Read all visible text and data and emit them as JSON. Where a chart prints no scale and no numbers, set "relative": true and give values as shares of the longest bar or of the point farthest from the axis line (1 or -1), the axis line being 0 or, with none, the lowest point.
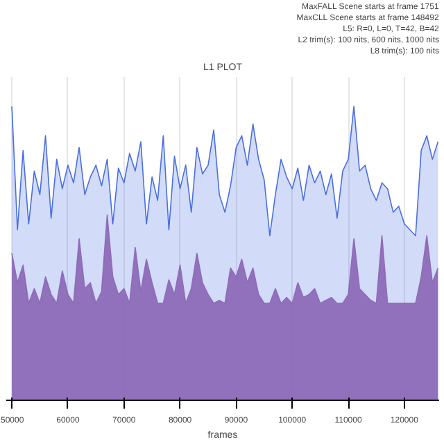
{
  "chart_data": {
    "type": "area",
    "title": "L1 PLOT",
    "xlabel": "frames",
    "relative": true,
    "grid": "x",
    "annotations": [
      "MaxFALL Scene starts at frame 1751",
      "MaxCLL Scene starts at frame 148492",
      "L5: R=0, L=0, T=42, B=42",
      "L2 trim(s): 100 nits, 600 nits, 1000 nits",
      "L8 trim(s): 100 nits"
    ],
    "xlim": [
      49000,
      126200
    ],
    "xticks": [
      50000,
      60000,
      70000,
      80000,
      90000,
      100000,
      110000,
      120000
    ],
    "x": [
      50000,
      51000,
      52000,
      53000,
      54000,
      55000,
      56000,
      57000,
      58000,
      59000,
      60000,
      61000,
      62000,
      63000,
      64000,
      65000,
      66000,
      67000,
      68000,
      69000,
      70000,
      71000,
      72000,
      73000,
      74000,
      75000,
      76000,
      77000,
      78000,
      79000,
      80000,
      81000,
      82000,
      83000,
      84000,
      85000,
      86000,
      87000,
      88000,
      89000,
      90000,
      91000,
      92000,
      93000,
      94000,
      95000,
      96000,
      97000,
      98000,
      99000,
      100000,
      101000,
      102000,
      103000,
      104000,
      105000,
      106000,
      107000,
      108000,
      109000,
      110000,
      111000,
      112000,
      113000,
      114000,
      115000,
      116000,
      117000,
      118000,
      119000,
      120000,
      121000,
      122000,
      123000,
      124000,
      125000,
      126000
    ],
    "series": [
      {
        "color": "#4a6fe0",
        "values": [
          1.0,
          0.58,
          0.85,
          0.6,
          0.78,
          0.7,
          0.9,
          0.62,
          0.82,
          0.72,
          0.8,
          0.74,
          0.86,
          0.7,
          0.76,
          0.8,
          0.73,
          0.82,
          0.6,
          0.79,
          0.74,
          0.84,
          0.78,
          0.88,
          0.6,
          0.76,
          0.68,
          0.9,
          0.58,
          0.83,
          0.72,
          0.8,
          0.64,
          0.86,
          0.77,
          0.8,
          0.92,
          0.7,
          0.64,
          0.73,
          0.86,
          0.9,
          0.8,
          0.94,
          0.82,
          0.75,
          0.56,
          0.7,
          0.82,
          0.76,
          0.72,
          0.79,
          0.68,
          0.8,
          0.74,
          0.78,
          0.7,
          0.77,
          0.62,
          0.78,
          0.82,
          1.0,
          0.78,
          0.8,
          0.72,
          0.68,
          0.74,
          0.72,
          0.64,
          0.66,
          0.6,
          0.58,
          0.56,
          0.85,
          0.9,
          0.82,
          0.88
        ]
      },
      {
        "color": "#8e6bb8",
        "values": [
          0.5,
          0.4,
          0.46,
          0.33,
          0.38,
          0.33,
          0.42,
          0.36,
          0.33,
          0.44,
          0.36,
          0.33,
          0.55,
          0.38,
          0.4,
          0.33,
          0.37,
          0.63,
          0.42,
          0.36,
          0.38,
          0.33,
          0.52,
          0.37,
          0.48,
          0.4,
          0.33,
          0.33,
          0.41,
          0.36,
          0.46,
          0.33,
          0.38,
          0.5,
          0.4,
          0.36,
          0.33,
          0.34,
          0.33,
          0.45,
          0.42,
          0.48,
          0.4,
          0.45,
          0.36,
          0.33,
          0.33,
          0.38,
          0.33,
          0.35,
          0.33,
          0.4,
          0.35,
          0.36,
          0.38,
          0.33,
          0.34,
          0.35,
          0.33,
          0.33,
          0.36,
          0.55,
          0.38,
          0.36,
          0.34,
          0.33,
          0.56,
          0.33,
          0.33,
          0.33,
          0.33,
          0.33,
          0.33,
          0.42,
          0.56,
          0.4,
          0.45
        ]
      }
    ]
  }
}
